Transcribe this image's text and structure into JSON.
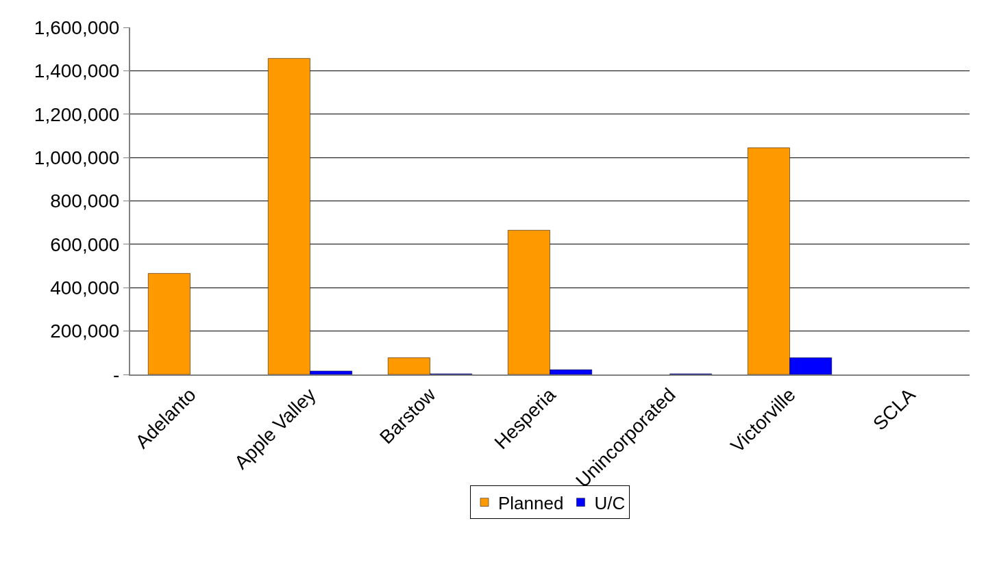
{
  "chart_data": {
    "type": "bar",
    "categories": [
      "Adelanto",
      "Apple Valley",
      "Barstow",
      "Hesperia",
      "Unincorporated",
      "Victorville",
      "SCLA"
    ],
    "series": [
      {
        "name": "Planned",
        "color": "#ff9900",
        "values": [
          466000,
          1457000,
          77000,
          665000,
          null,
          1045000,
          null
        ]
      },
      {
        "name": "U/C",
        "color": "#0000ff",
        "values": [
          null,
          16000,
          3000,
          22000,
          3000,
          77000,
          null
        ]
      }
    ],
    "ylim": [
      0,
      1600000
    ],
    "yticks": [
      {
        "value": 0,
        "label": "-"
      },
      {
        "value": 200000,
        "label": "200,000"
      },
      {
        "value": 400000,
        "label": "400,000"
      },
      {
        "value": 600000,
        "label": "600,000"
      },
      {
        "value": 800000,
        "label": "800,000"
      },
      {
        "value": 1000000,
        "label": "1,000,000"
      },
      {
        "value": 1200000,
        "label": "1,200,000"
      },
      {
        "value": 1400000,
        "label": "1,400,000"
      },
      {
        "value": 1600000,
        "label": "1,600,000"
      }
    ],
    "grid": "y",
    "legend": "bottom"
  }
}
